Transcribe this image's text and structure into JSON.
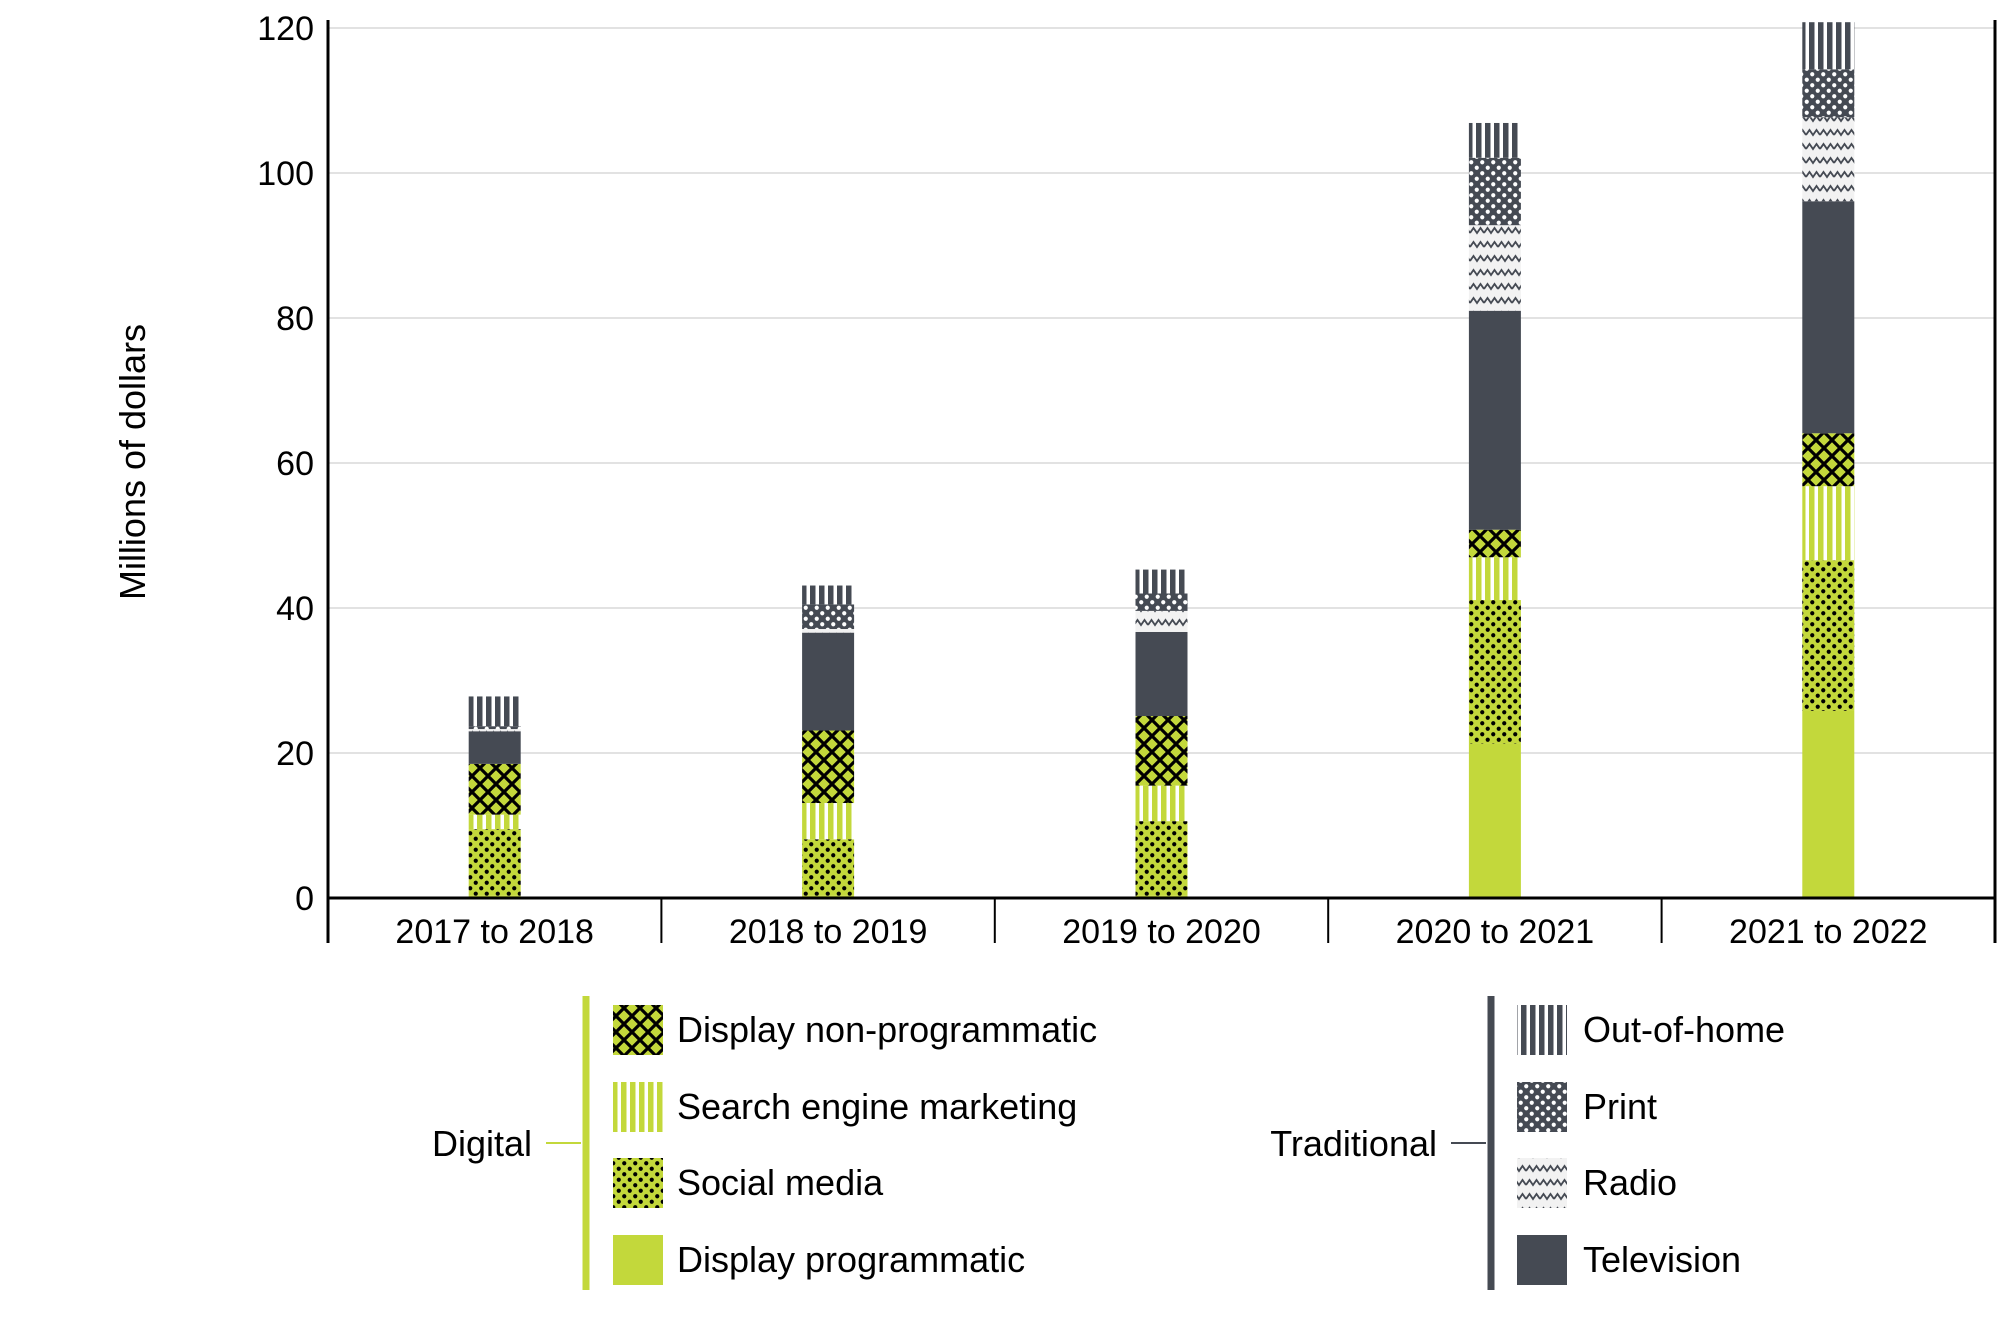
{
  "chart_data": {
    "type": "bar",
    "stacked": true,
    "title": "",
    "xlabel": "",
    "ylabel": "Millions of dollars",
    "ylim": [
      0,
      120
    ],
    "yticks": [
      0,
      20,
      40,
      60,
      80,
      100,
      120
    ],
    "grid": true,
    "categories": [
      "2017 to 2018",
      "2018 to 2019",
      "2019 to 2020",
      "2020 to 2021",
      "2021 to 2022"
    ],
    "series": [
      {
        "name": "Display programmatic",
        "group": "Digital",
        "pattern": "solid",
        "color": "#c3d83b",
        "values": [
          0.3,
          0.3,
          0.3,
          21.3,
          25.8
        ]
      },
      {
        "name": "Social media",
        "group": "Digital",
        "pattern": "dots",
        "color": "#c3d83b",
        "values": [
          9.2,
          7.8,
          10.3,
          19.8,
          20.8
        ]
      },
      {
        "name": "Search engine marketing",
        "group": "Digital",
        "pattern": "vertical-lines",
        "color": "#c3d83b",
        "values": [
          2.0,
          5.0,
          4.9,
          5.9,
          10.2
        ]
      },
      {
        "name": "Display non-programmatic",
        "group": "Digital",
        "pattern": "crosshatch",
        "color": "#c3d83b",
        "values": [
          7.0,
          10.0,
          9.6,
          3.8,
          7.3
        ]
      },
      {
        "name": "Television",
        "group": "Traditional",
        "pattern": "solid",
        "color": "#454a53",
        "values": [
          4.5,
          13.5,
          11.6,
          30.2,
          32.0
        ]
      },
      {
        "name": "Radio",
        "group": "Traditional",
        "pattern": "zigzag",
        "color": "#454a53",
        "values": [
          0.3,
          0.5,
          2.9,
          11.8,
          11.6
        ]
      },
      {
        "name": "Print",
        "group": "Traditional",
        "pattern": "dots",
        "color": "#454a53",
        "values": [
          0.4,
          3.4,
          2.4,
          9.3,
          6.6
        ]
      },
      {
        "name": "Out-of-home",
        "group": "Traditional",
        "pattern": "vertical-lines",
        "color": "#454a53",
        "values": [
          4.1,
          2.6,
          3.3,
          4.8,
          6.5
        ]
      }
    ],
    "legend": {
      "placement": "bottom",
      "groups": [
        {
          "label": "Digital",
          "color": "#c3d83b",
          "items": [
            "Display non-programmatic",
            "Search engine marketing",
            "Social media",
            "Display programmatic"
          ]
        },
        {
          "label": "Traditional",
          "color": "#454a53",
          "items": [
            "Out-of-home",
            "Print",
            "Radio",
            "Television"
          ]
        }
      ]
    }
  }
}
